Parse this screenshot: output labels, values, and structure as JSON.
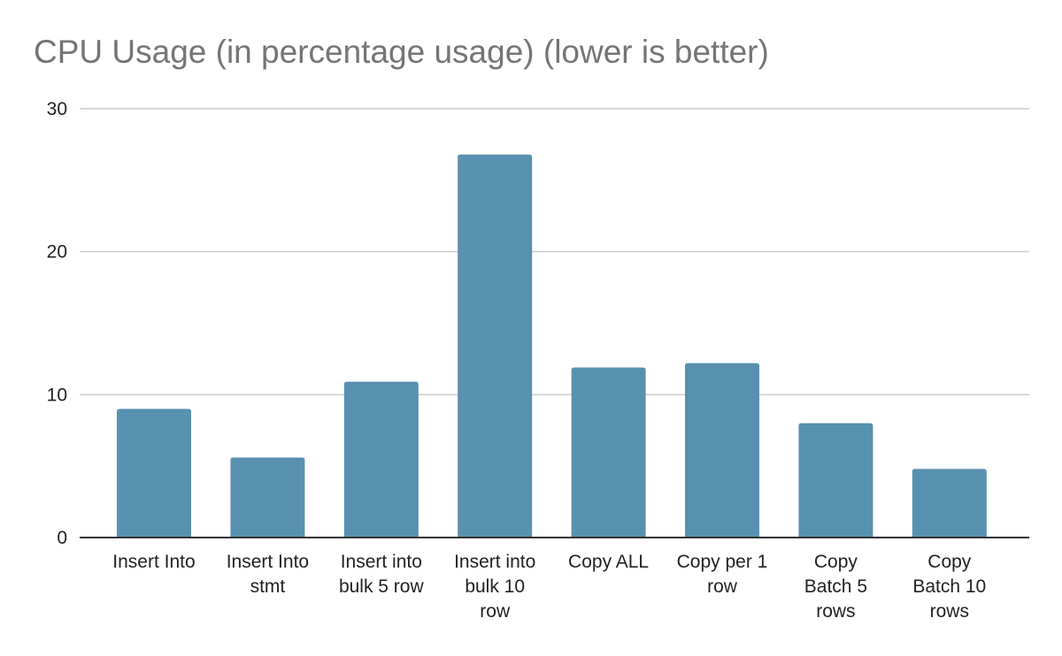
{
  "chart_data": {
    "type": "bar",
    "title": "CPU Usage (in percentage usage) (lower is better)",
    "xlabel": "",
    "ylabel": "",
    "categories": [
      [
        "Insert Into"
      ],
      [
        "Insert Into",
        "stmt"
      ],
      [
        "Insert into",
        "bulk 5 row"
      ],
      [
        "Insert into",
        "bulk 10",
        "row"
      ],
      [
        "Copy ALL"
      ],
      [
        "Copy per 1",
        "row"
      ],
      [
        "Copy",
        "Batch 5",
        "rows"
      ],
      [
        "Copy",
        "Batch 10",
        "rows"
      ]
    ],
    "values": [
      9.0,
      5.6,
      10.9,
      26.8,
      11.9,
      12.2,
      8.0,
      4.8
    ],
    "ylim": [
      0,
      30
    ],
    "yticks": [
      "0",
      "10",
      "20",
      "30"
    ],
    "grid": true,
    "legend": "none",
    "colors": {
      "bar": "#5891af",
      "grid": "#cccccc",
      "axis": "#333333"
    }
  }
}
